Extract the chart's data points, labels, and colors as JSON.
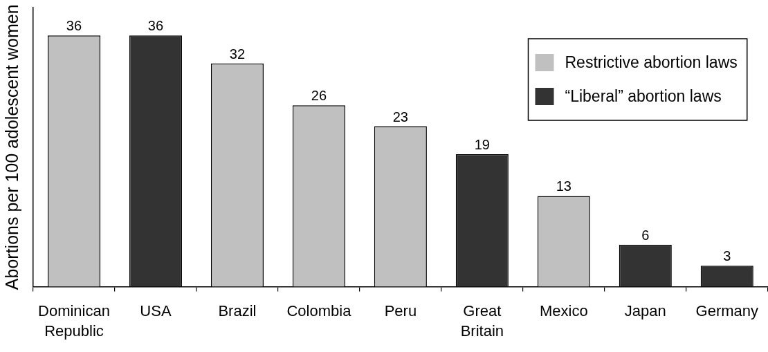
{
  "chart_data": {
    "type": "bar",
    "ylabel": "Abortions per 100 adolescent women",
    "categories": [
      "Dominican Republic",
      "USA",
      "Brazil",
      "Colombia",
      "Peru",
      "Great Britain",
      "Mexico",
      "Japan",
      "Germany"
    ],
    "series": [
      {
        "name": "Restrictive abortion laws",
        "color": "#c0c0c0",
        "values": [
          36,
          null,
          32,
          26,
          23,
          null,
          13,
          null,
          null
        ]
      },
      {
        "name": "“Liberal” abortion laws",
        "color": "#333333",
        "values": [
          null,
          36,
          null,
          null,
          null,
          19,
          null,
          6,
          3
        ]
      }
    ],
    "data_labels": true,
    "legend": "top right",
    "tick_labels": "x"
  }
}
